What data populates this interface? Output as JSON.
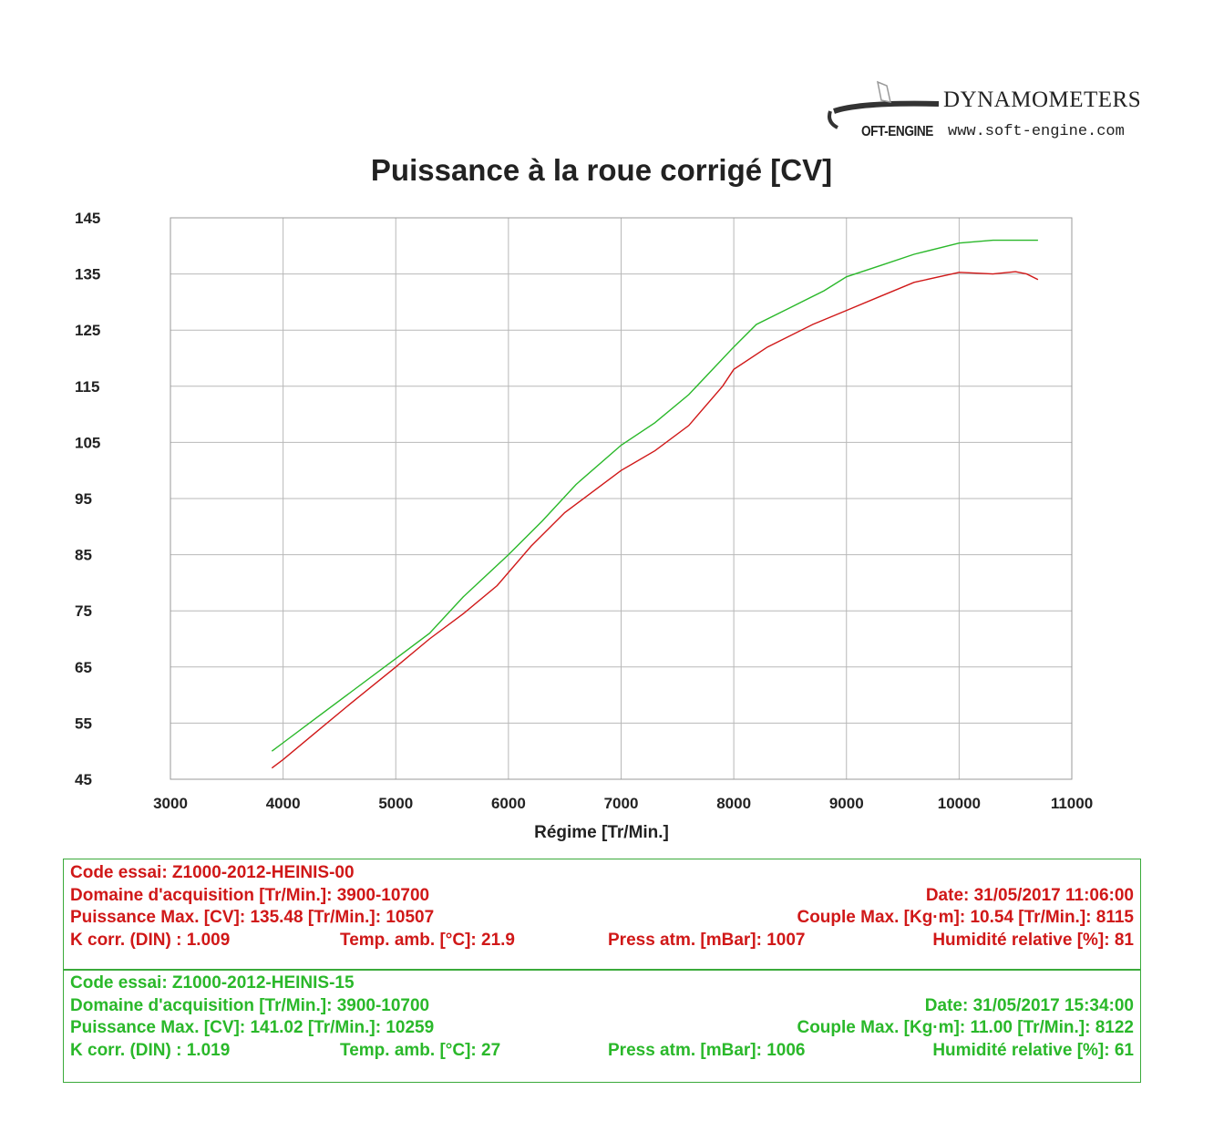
{
  "logo": {
    "brand": "DYNAMOMETERS",
    "mark": "OFT-ENGINE",
    "url": "www.soft-engine.com"
  },
  "chart_data": {
    "type": "line",
    "title": "Puissance à la roue corrigé [CV]",
    "xlabel": "Régime [Tr/Min.]",
    "ylabel": "",
    "xlim": [
      3000,
      11000
    ],
    "ylim": [
      45,
      145
    ],
    "xticks": [
      3000,
      4000,
      5000,
      6000,
      7000,
      8000,
      9000,
      10000,
      11000
    ],
    "yticks": [
      145,
      135,
      125,
      115,
      105,
      95,
      85,
      75,
      65,
      55,
      45
    ],
    "grid": true,
    "series": [
      {
        "color": "#2ab82a",
        "points": [
          [
            3900,
            50
          ],
          [
            4000,
            51.5
          ],
          [
            4300,
            56
          ],
          [
            4600,
            60.5
          ],
          [
            5000,
            66.5
          ],
          [
            5300,
            71
          ],
          [
            5600,
            77.5
          ],
          [
            6000,
            85
          ],
          [
            6300,
            91
          ],
          [
            6600,
            97.5
          ],
          [
            7000,
            104.5
          ],
          [
            7300,
            108.5
          ],
          [
            7600,
            113.5
          ],
          [
            8000,
            122
          ],
          [
            8200,
            126
          ],
          [
            8500,
            129
          ],
          [
            8800,
            132
          ],
          [
            9000,
            134.5
          ],
          [
            9300,
            136.5
          ],
          [
            9600,
            138.5
          ],
          [
            10000,
            140.5
          ],
          [
            10300,
            141
          ],
          [
            10700,
            141
          ]
        ]
      },
      {
        "color": "#d01818",
        "points": [
          [
            3900,
            47
          ],
          [
            4000,
            48.5
          ],
          [
            4300,
            53.5
          ],
          [
            4600,
            58.5
          ],
          [
            5000,
            65
          ],
          [
            5300,
            70
          ],
          [
            5600,
            74.5
          ],
          [
            5900,
            79.5
          ],
          [
            6200,
            86.5
          ],
          [
            6500,
            92.5
          ],
          [
            6800,
            97
          ],
          [
            7000,
            100
          ],
          [
            7300,
            103.5
          ],
          [
            7600,
            108
          ],
          [
            7900,
            115
          ],
          [
            8000,
            118
          ],
          [
            8300,
            122
          ],
          [
            8700,
            126
          ],
          [
            9000,
            128.5
          ],
          [
            9300,
            131
          ],
          [
            9600,
            133.5
          ],
          [
            10000,
            135.3
          ],
          [
            10300,
            135
          ],
          [
            10500,
            135.4
          ],
          [
            10600,
            135
          ],
          [
            10700,
            134
          ]
        ]
      }
    ]
  },
  "tests": [
    {
      "color": "#d01818",
      "code": "Code essai: Z1000-2012-HEINIS-00",
      "domain": "Domaine d'acquisition [Tr/Min.]: 3900-10700",
      "date": "Date: 31/05/2017   11:06:00",
      "power": "Puissance Max. [CV]: 135.48   [Tr/Min.]: 10507",
      "torque": "Couple Max. [Kg·m]: 10.54   [Tr/Min.]: 8115",
      "kcorr": "K corr. (DIN) : 1.009",
      "temp": "Temp. amb. [°C]: 21.9",
      "press": "Press atm. [mBar]: 1007",
      "humidity": "Humidité relative [%]: 81"
    },
    {
      "color": "#2ab82a",
      "code": "Code essai: Z1000-2012-HEINIS-15",
      "domain": "Domaine d'acquisition [Tr/Min.]: 3900-10700",
      "date": "Date: 31/05/2017   15:34:00",
      "power": "Puissance Max. [CV]: 141.02   [Tr/Min.]: 10259",
      "torque": "Couple Max. [Kg·m]: 11.00   [Tr/Min.]: 8122",
      "kcorr": "K corr. (DIN) : 1.019",
      "temp": "Temp. amb. [°C]: 27",
      "press": "Press atm. [mBar]: 1006",
      "humidity": "Humidité relative [%]: 61"
    }
  ]
}
